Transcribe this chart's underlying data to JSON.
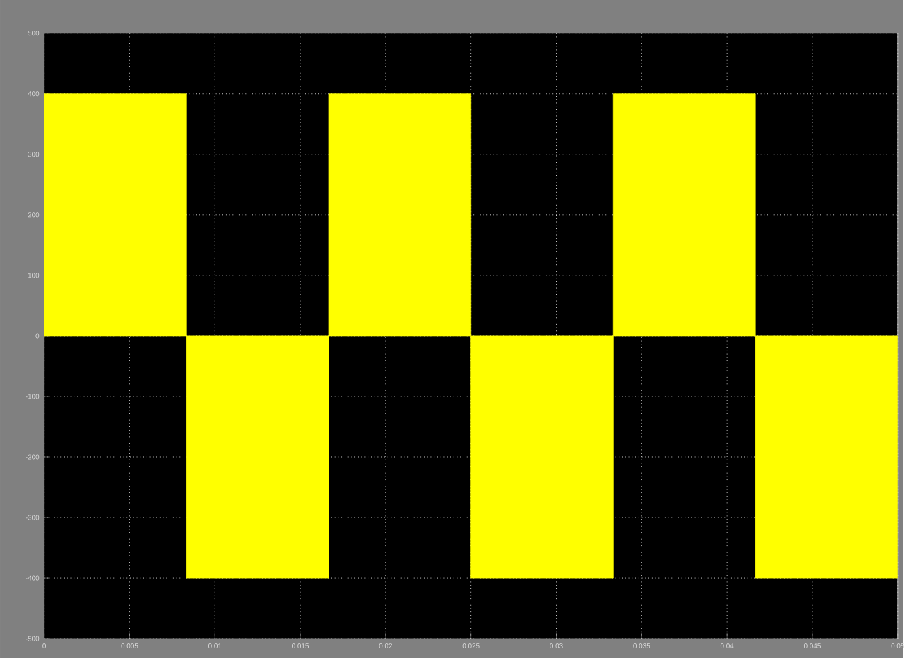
{
  "chart_data": {
    "type": "area",
    "x": [
      0,
      0.00833,
      0.00833,
      0.01667,
      0.01667,
      0.025,
      0.025,
      0.03333,
      0.03333,
      0.04167,
      0.04167,
      0.05
    ],
    "series": [
      {
        "color": "#ffff00",
        "values": [
          400,
          400,
          -400,
          -400,
          400,
          400,
          -400,
          -400,
          400,
          400,
          -400,
          -400
        ]
      }
    ],
    "xlim": [
      0,
      0.05
    ],
    "xticks": [
      0,
      0.005,
      0.01,
      0.015,
      0.02,
      0.025,
      0.03,
      0.035,
      0.04,
      0.045,
      0.05
    ],
    "ylim": [
      -500,
      500
    ],
    "yticks": [
      -500,
      -400,
      -300,
      -200,
      -100,
      0,
      100,
      200,
      300,
      400,
      500
    ],
    "grid": true
  }
}
